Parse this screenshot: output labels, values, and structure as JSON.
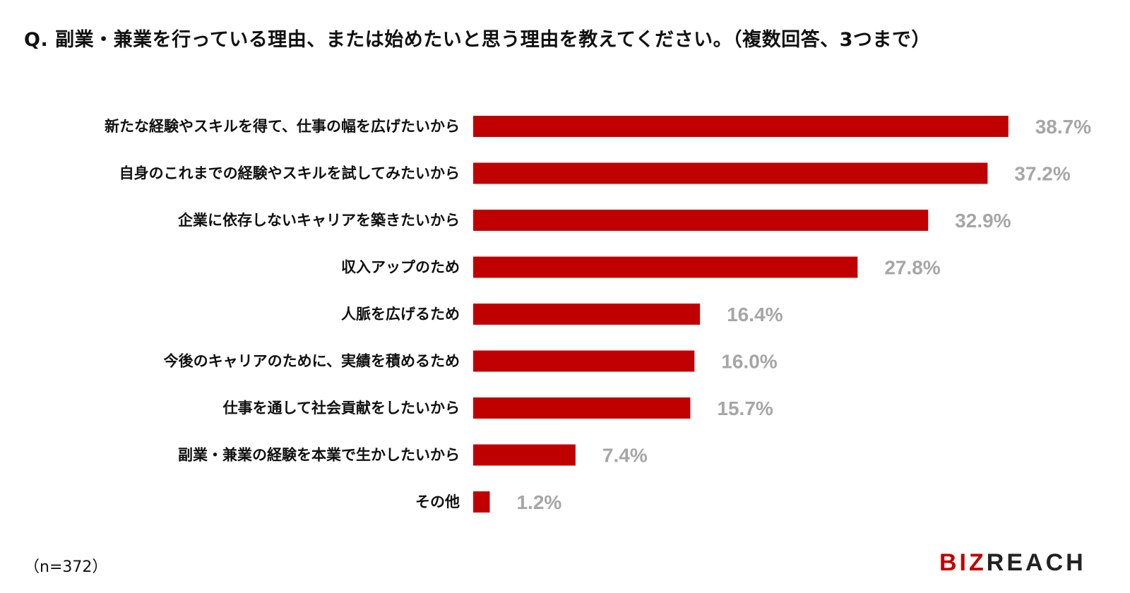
{
  "title": "Q. 副業・兼業を行っている理由、または始めたいと思う理由を教えてください。（複数回答、3つまで）",
  "note": "（n=372）",
  "logo": {
    "red_part": "BIZ",
    "dark_part": "REACH"
  },
  "colors": {
    "bar": "#c00000",
    "value_label": "#a6a6a6",
    "text": "#111111"
  },
  "chart_data": {
    "type": "bar",
    "orientation": "horizontal",
    "unit": "%",
    "categories": [
      "新たな経験やスキルを得て、仕事の幅を広げたいから",
      "自身のこれまでの経験やスキルを試してみたいから",
      "企業に依存しないキャリアを築きたいから",
      "収入アップのため",
      "人脈を広げるため",
      "今後のキャリアのために、実績を積めるため",
      "仕事を通して社会貢献をしたいから",
      "副業・兼業の経験を本業で生かしたいから",
      "その他"
    ],
    "values": [
      38.7,
      37.2,
      32.9,
      27.8,
      16.4,
      16.0,
      15.7,
      7.4,
      1.2
    ],
    "value_labels": [
      "38.7%",
      "37.2%",
      "32.9%",
      "27.8%",
      "16.4%",
      "16.0%",
      "15.7%",
      "7.4%",
      "1.2%"
    ],
    "xlim": [
      0,
      40
    ],
    "grid": false,
    "legend": "none"
  }
}
